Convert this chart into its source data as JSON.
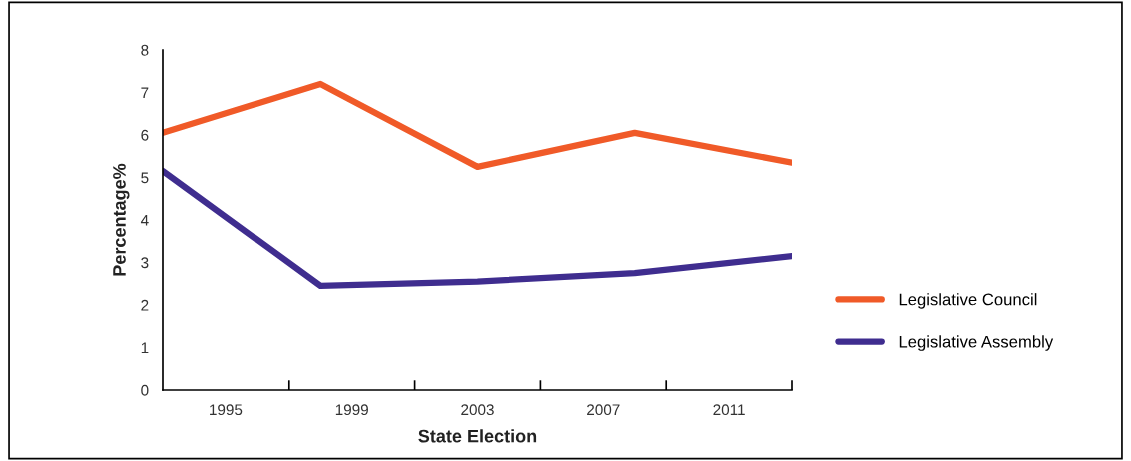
{
  "chart_data": {
    "type": "line",
    "xlabel": "State Election",
    "ylabel": "Percentage%",
    "x": [
      1993,
      1998,
      2003,
      2008,
      2013
    ],
    "series": [
      {
        "name": "Legislative Council",
        "color": "#f05a28",
        "values": [
          6.05,
          7.2,
          5.25,
          6.05,
          5.35
        ]
      },
      {
        "name": "Legislative Assembly",
        "color": "#3f2d8f",
        "values": [
          5.15,
          2.45,
          2.55,
          2.75,
          3.15
        ]
      }
    ],
    "xlim": [
      1993,
      2013
    ],
    "xticks": [
      {
        "value": 1995,
        "label": "1995"
      },
      {
        "value": 1997,
        "label": null
      },
      {
        "value": 1999,
        "label": "1999"
      },
      {
        "value": 2001,
        "label": null
      },
      {
        "value": 2003,
        "label": "2003"
      },
      {
        "value": 2005,
        "label": null
      },
      {
        "value": 2007,
        "label": "2007"
      },
      {
        "value": 2009,
        "label": null
      },
      {
        "value": 2011,
        "label": "2011"
      },
      {
        "value": 2013,
        "label": null
      }
    ],
    "ylim": [
      0,
      8
    ],
    "yticks": [
      0,
      1,
      2,
      3,
      4,
      5,
      6,
      7,
      8
    ],
    "grid": false,
    "legend": "right",
    "marker": "none",
    "line_style": "solid"
  }
}
